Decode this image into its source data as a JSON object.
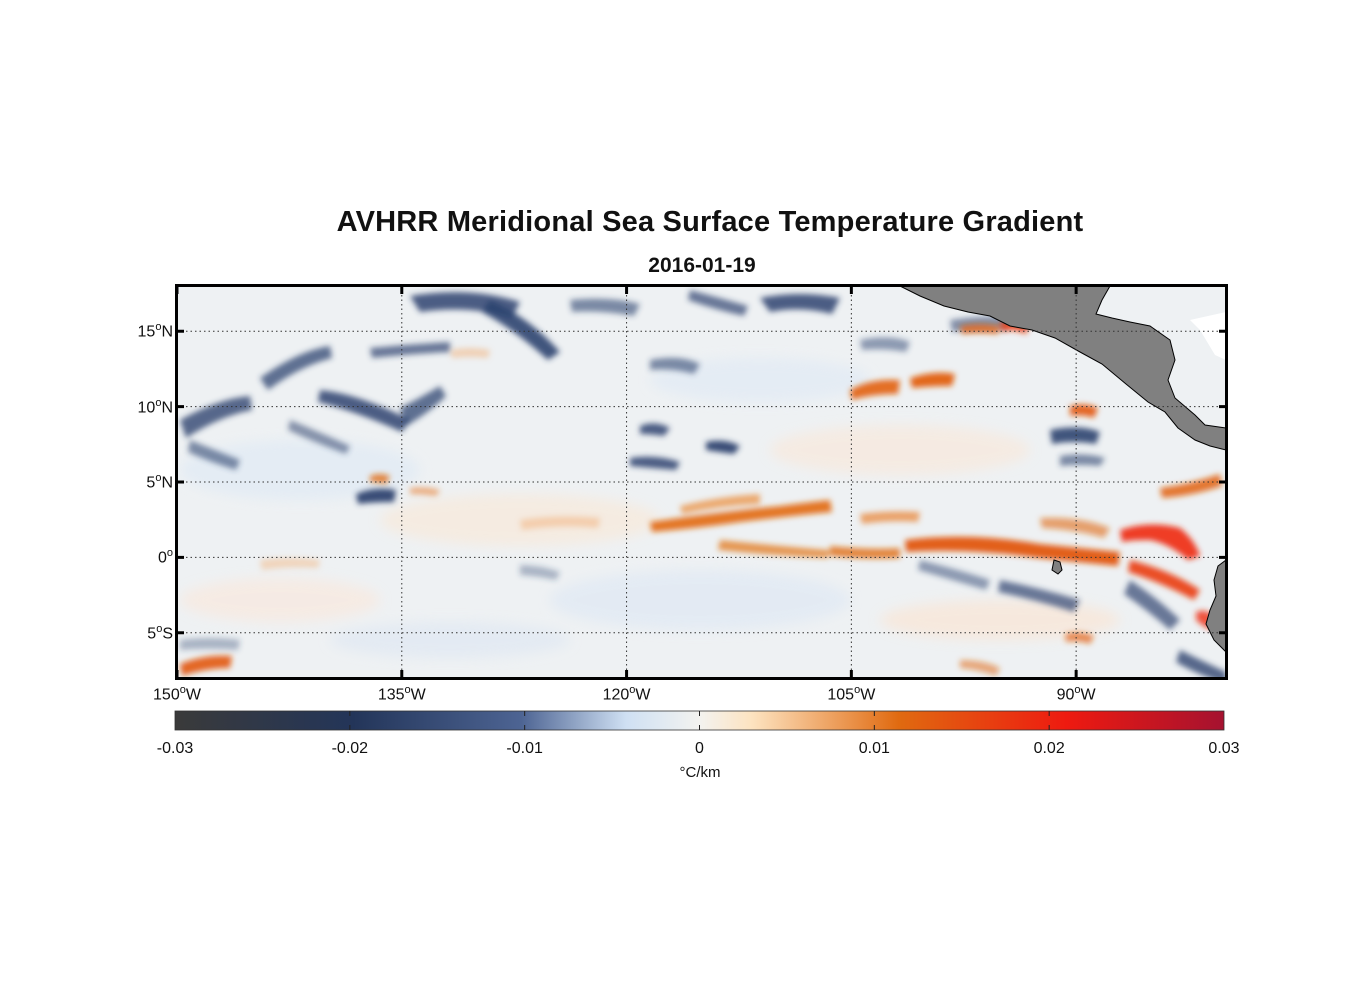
{
  "title": "AVHRR Meridional Sea Surface Temperature Gradient",
  "subtitle": "2016-01-19",
  "map": {
    "lon_range": [
      -150,
      -80
    ],
    "lat_range": [
      -8,
      18
    ],
    "grid": true,
    "land_color": "#808080",
    "lat_ticks": [
      {
        "value": 15,
        "num": "15",
        "hem": "N"
      },
      {
        "value": 10,
        "num": "10",
        "hem": "N"
      },
      {
        "value": 5,
        "num": "5",
        "hem": "N"
      },
      {
        "value": 0,
        "num": "0",
        "hem": ""
      },
      {
        "value": -5,
        "num": "5",
        "hem": "S"
      }
    ],
    "lon_ticks": [
      {
        "value": -150,
        "num": "150",
        "hem": "W"
      },
      {
        "value": -135,
        "num": "135",
        "hem": "W"
      },
      {
        "value": -120,
        "num": "120",
        "hem": "W"
      },
      {
        "value": -105,
        "num": "105",
        "hem": "W"
      },
      {
        "value": -90,
        "num": "90",
        "hem": "W"
      }
    ]
  },
  "colorbar": {
    "min": -0.03,
    "max": 0.03,
    "ticks": [
      "-0.03",
      "-0.02",
      "-0.01",
      "0",
      "0.01",
      "0.02",
      "0.03"
    ],
    "units": "°C/km",
    "colors": [
      "#3a3a3a",
      "#233559",
      "#4d6493",
      "#cfe0f3",
      "#f3f3f0",
      "#fde3c0",
      "#e06a10",
      "#ee1a10",
      "#a51230"
    ]
  }
}
